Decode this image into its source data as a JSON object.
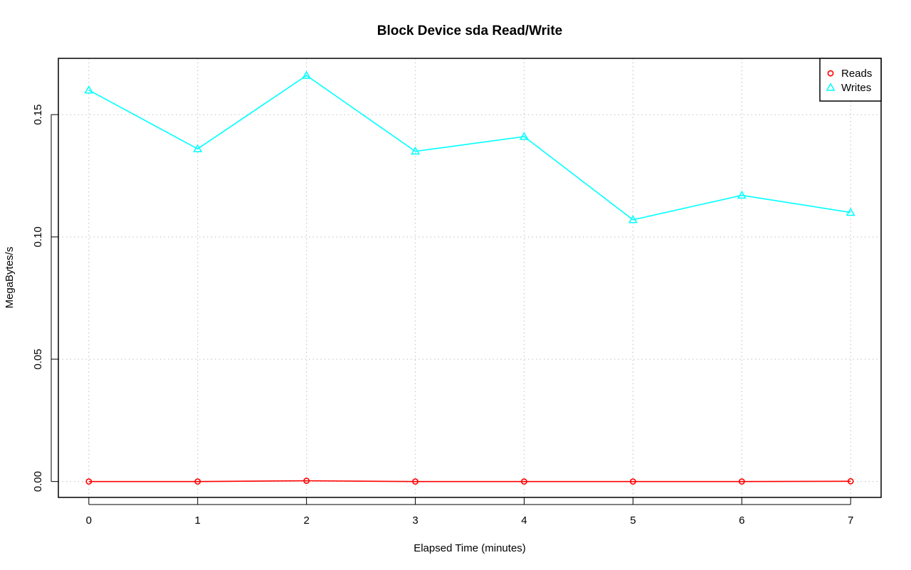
{
  "chart_data": {
    "type": "line",
    "title": "Block Device sda Read/Write",
    "xlabel": "Elapsed Time (minutes)",
    "ylabel": "MegaBytes/s",
    "x": [
      0,
      1,
      2,
      3,
      4,
      5,
      6,
      7
    ],
    "xlim": [
      -0.28,
      7.28
    ],
    "ylim": [
      -0.0065,
      0.173
    ],
    "xticks": [
      0,
      1,
      2,
      3,
      4,
      5,
      6,
      7
    ],
    "yticks": [
      0.0,
      0.05,
      0.1,
      0.15
    ],
    "ytick_labels": [
      "0.00",
      "0.05",
      "0.10",
      "0.15"
    ],
    "grid": true,
    "legend_position": "top-right",
    "series": [
      {
        "name": "Reads",
        "color": "#ff0000",
        "marker": "circle",
        "values": [
          0.0,
          0.0,
          0.0003,
          0.0,
          0.0,
          0.0,
          0.0,
          0.0001
        ]
      },
      {
        "name": "Writes",
        "color": "#00ffff",
        "marker": "triangle",
        "values": [
          0.16,
          0.136,
          0.166,
          0.135,
          0.141,
          0.107,
          0.117,
          0.11
        ]
      }
    ]
  }
}
